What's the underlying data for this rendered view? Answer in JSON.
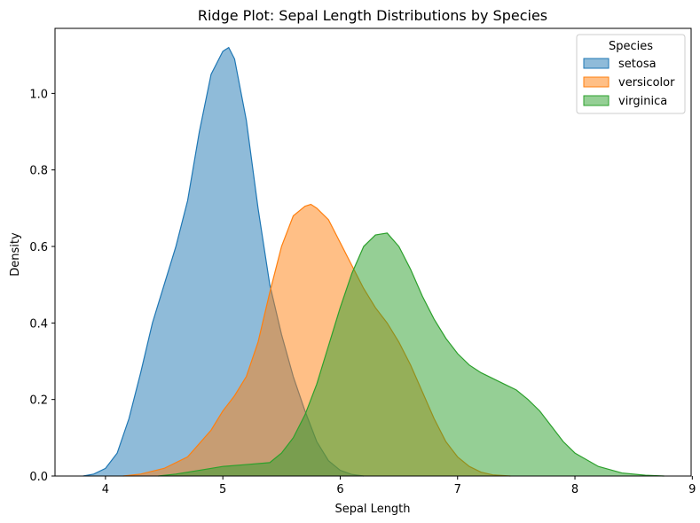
{
  "chart_data": {
    "type": "area",
    "title": "Ridge Plot: Sepal Length Distributions by Species",
    "xlabel": "Sepal Length",
    "ylabel": "Density",
    "xlim": [
      3.57,
      8.99
    ],
    "ylim": [
      0,
      1.17
    ],
    "xticks": [
      "4",
      "5",
      "6",
      "7",
      "8",
      "9"
    ],
    "yticks": [
      "0.0",
      "0.2",
      "0.4",
      "0.6",
      "0.8",
      "1.0"
    ],
    "legend": {
      "title": "Species",
      "placement": "top-right"
    },
    "grid": false,
    "series": [
      {
        "name": "setosa",
        "color": "#1f77b4",
        "x": [
          3.81,
          3.9,
          4.0,
          4.1,
          4.2,
          4.3,
          4.4,
          4.5,
          4.6,
          4.7,
          4.8,
          4.9,
          5.0,
          5.05,
          5.1,
          5.2,
          5.3,
          5.4,
          5.5,
          5.6,
          5.7,
          5.8,
          5.9,
          6.0,
          6.1,
          6.2
        ],
        "y": [
          0.0,
          0.005,
          0.02,
          0.06,
          0.15,
          0.27,
          0.4,
          0.5,
          0.6,
          0.72,
          0.9,
          1.05,
          1.11,
          1.12,
          1.09,
          0.93,
          0.7,
          0.5,
          0.37,
          0.26,
          0.17,
          0.09,
          0.04,
          0.015,
          0.004,
          0.0
        ]
      },
      {
        "name": "versicolor",
        "color": "#ff7f0e",
        "x": [
          4.15,
          4.3,
          4.5,
          4.7,
          4.9,
          5.0,
          5.1,
          5.2,
          5.3,
          5.4,
          5.5,
          5.6,
          5.7,
          5.75,
          5.8,
          5.9,
          6.0,
          6.1,
          6.2,
          6.3,
          6.4,
          6.5,
          6.6,
          6.7,
          6.8,
          6.9,
          7.0,
          7.1,
          7.2,
          7.3,
          7.45
        ],
        "y": [
          0.0,
          0.005,
          0.02,
          0.05,
          0.12,
          0.17,
          0.21,
          0.26,
          0.35,
          0.48,
          0.6,
          0.68,
          0.705,
          0.71,
          0.7,
          0.67,
          0.61,
          0.55,
          0.49,
          0.44,
          0.4,
          0.35,
          0.29,
          0.22,
          0.15,
          0.09,
          0.05,
          0.025,
          0.01,
          0.003,
          0.0
        ]
      },
      {
        "name": "virginica",
        "color": "#2ca02c",
        "x": [
          4.45,
          4.6,
          4.8,
          5.0,
          5.2,
          5.4,
          5.5,
          5.6,
          5.7,
          5.8,
          5.9,
          6.0,
          6.1,
          6.2,
          6.3,
          6.4,
          6.5,
          6.6,
          6.7,
          6.8,
          6.9,
          7.0,
          7.1,
          7.2,
          7.3,
          7.4,
          7.5,
          7.6,
          7.7,
          7.8,
          7.9,
          8.0,
          8.2,
          8.4,
          8.6,
          8.76
        ],
        "y": [
          0.0,
          0.005,
          0.015,
          0.025,
          0.03,
          0.035,
          0.06,
          0.1,
          0.16,
          0.24,
          0.34,
          0.44,
          0.53,
          0.6,
          0.63,
          0.635,
          0.6,
          0.54,
          0.47,
          0.41,
          0.36,
          0.32,
          0.29,
          0.27,
          0.255,
          0.24,
          0.225,
          0.2,
          0.17,
          0.13,
          0.09,
          0.06,
          0.025,
          0.008,
          0.002,
          0.0
        ]
      }
    ]
  }
}
